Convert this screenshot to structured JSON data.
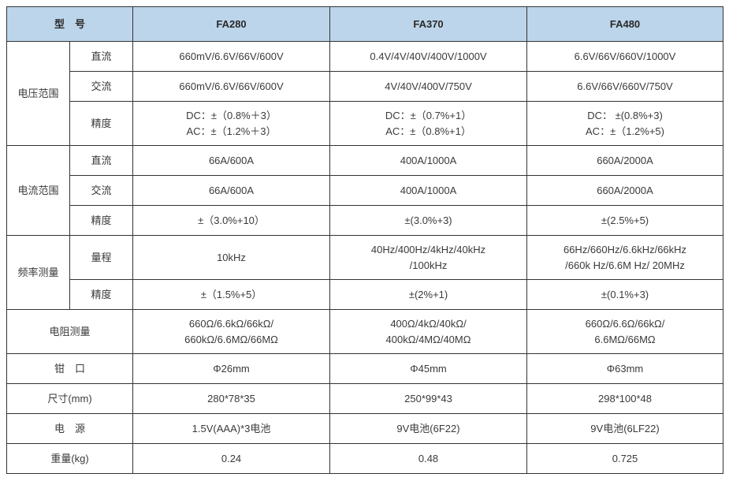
{
  "header": {
    "model_label": "型 号",
    "cols": [
      "FA280",
      "FA370",
      "FA480"
    ]
  },
  "groups": [
    {
      "label": "电压范围",
      "rows": [
        {
          "sub": "直流",
          "h": "norm",
          "vals": [
            "660mV/6.6V/66V/600V",
            "0.4V/4V/40V/400V/1000V",
            "6.6V/66V/660V/1000V"
          ]
        },
        {
          "sub": "交流",
          "h": "norm",
          "vals": [
            "660mV/6.6V/66V/600V",
            "4V/40V/400V/750V",
            "6.6V/66V/660V/750V"
          ]
        },
        {
          "sub": "精度",
          "h": "tall",
          "vals": [
            [
              "DC：±（0.8%＋3）",
              "AC：±（1.2%＋3）"
            ],
            [
              "DC：±（0.7%+1）",
              "AC：±（0.8%+1）"
            ],
            [
              "DC： ±(0.8%+3)",
              "AC：±（1.2%+5)"
            ]
          ]
        }
      ]
    },
    {
      "label": "电流范围",
      "rows": [
        {
          "sub": "直流",
          "h": "norm",
          "vals": [
            "66A/600A",
            "400A/1000A",
            "660A/2000A"
          ]
        },
        {
          "sub": "交流",
          "h": "norm",
          "vals": [
            "66A/600A",
            "400A/1000A",
            "660A/2000A"
          ]
        },
        {
          "sub": "精度",
          "h": "norm",
          "vals": [
            "±（3.0%+10）",
            "±(3.0%+3)",
            "±(2.5%+5)"
          ]
        }
      ]
    },
    {
      "label": "频率测量",
      "rows": [
        {
          "sub": "量程",
          "h": "tall",
          "vals": [
            "10kHz",
            [
              "40Hz/400Hz/4kHz/40kHz",
              "/100kHz"
            ],
            [
              "66Hz/660Hz/6.6kHz/66kHz",
              "/660k Hz/6.6M  Hz/ 20MHz"
            ]
          ]
        },
        {
          "sub": "精度",
          "h": "norm",
          "vals": [
            "±（1.5%+5）",
            "±(2%+1)",
            "±(0.1%+3)"
          ]
        }
      ]
    }
  ],
  "simple_rows": [
    {
      "label": "电阻测量",
      "h": "tall",
      "vals": [
        [
          "660Ω/6.6kΩ/66kΩ/",
          "660kΩ/6.6MΩ/66MΩ"
        ],
        [
          "400Ω/4kΩ/40kΩ/",
          "400kΩ/4MΩ/40MΩ"
        ],
        [
          "660Ω/6.6Ω/66kΩ/",
          "6.6MΩ/66MΩ"
        ]
      ]
    },
    {
      "label": "钳 口",
      "h": "norm",
      "vals": [
        "Φ26mm",
        "Φ45mm",
        "Φ63mm"
      ]
    },
    {
      "label": "尺寸(mm)",
      "h": "norm",
      "vals": [
        "280*78*35",
        "250*99*43",
        "298*100*48"
      ]
    },
    {
      "label": "电 源",
      "h": "norm",
      "vals": [
        "1.5V(AAA)*3电池",
        "9V电池(6F22)",
        "9V电池(6LF22)"
      ]
    },
    {
      "label": "重量(kg)",
      "h": "norm",
      "vals": [
        "0.24",
        "0.48",
        "0.725"
      ]
    }
  ],
  "style": {
    "header_bg": "#bcd5ea",
    "border_color": "#333333",
    "text_color": "#3a3a3a",
    "font_size_pt": 10
  }
}
